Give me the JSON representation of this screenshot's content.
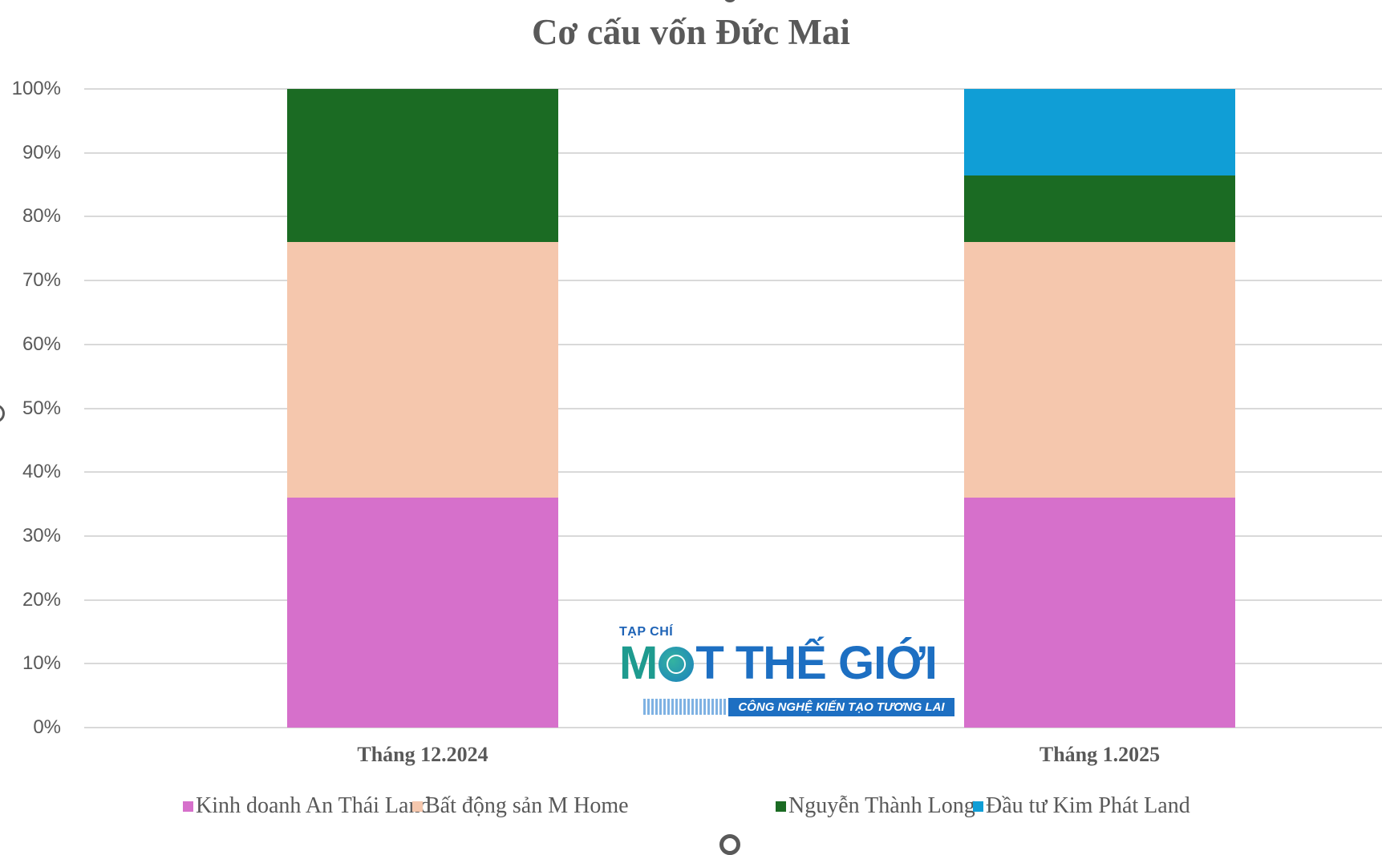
{
  "chart_data": {
    "type": "bar",
    "stacked": "percent",
    "title": "Cơ cấu vốn Đức Mai",
    "xlabel": "",
    "ylabel": "",
    "ylim": [
      0,
      100
    ],
    "yticks": [
      "0%",
      "10%",
      "20%",
      "30%",
      "40%",
      "50%",
      "60%",
      "70%",
      "80%",
      "90%",
      "100%"
    ],
    "categories": [
      "Tháng 12.2024",
      "Tháng 1.2025"
    ],
    "series": [
      {
        "name": "Kinh doanh An Thái Land",
        "color": "#d670cb",
        "values": [
          36,
          36
        ]
      },
      {
        "name": "Bất động sản M Home",
        "color": "#f5c7ad",
        "values": [
          40,
          40
        ]
      },
      {
        "name": "Nguyễn Thành Long",
        "color": "#1b6b23",
        "values": [
          24,
          10.4
        ]
      },
      {
        "name": "Đầu tư Kim Phát Land",
        "color": "#109ed6",
        "values": [
          0,
          13.6
        ]
      }
    ],
    "grid": true,
    "legend_position": "bottom"
  },
  "watermark": {
    "small": "TẠP CHÍ",
    "main_m": "M",
    "main_rest": "T THẾ GIỚI",
    "tagline": "CÔNG NGHỆ KIẾN TẠO TƯƠNG LAI"
  }
}
